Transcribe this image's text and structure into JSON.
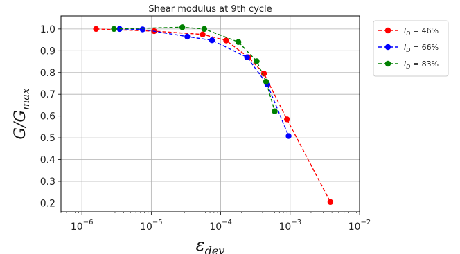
{
  "chart_data": {
    "type": "line",
    "title": "Shear modulus at 9th cycle",
    "xlabel": "ε_dev",
    "ylabel": "G/G_max",
    "xscale": "log",
    "xlim": [
      5e-07,
      0.01
    ],
    "ylim": [
      0.16,
      1.06
    ],
    "xtick_labels": [
      {
        "value": 1e-06,
        "base": "10",
        "exp": "−6"
      },
      {
        "value": 1e-05,
        "base": "10",
        "exp": "−5"
      },
      {
        "value": 0.0001,
        "base": "10",
        "exp": "−4"
      },
      {
        "value": 0.001,
        "base": "10",
        "exp": "−3"
      },
      {
        "value": 0.01,
        "base": "10",
        "exp": "−2"
      }
    ],
    "ytick_labels": [
      "0.2",
      "0.3",
      "0.4",
      "0.5",
      "0.6",
      "0.7",
      "0.8",
      "0.9",
      "1.0"
    ],
    "ytick_values": [
      0.2,
      0.3,
      0.4,
      0.5,
      0.6,
      0.7,
      0.8,
      0.9,
      1.0
    ],
    "grid": true,
    "legend_position": "outside-right",
    "series": [
      {
        "name": "I_D = 46%",
        "legend_main": "I",
        "legend_sub": "D",
        "legend_rest": " = 46%",
        "color": "#ff0000",
        "x": [
          1.6e-06,
          1.1e-05,
          5.5e-05,
          0.00012,
          0.00025,
          0.00042,
          0.0009,
          0.0038
        ],
        "y": [
          1.0,
          0.99,
          0.975,
          0.947,
          0.87,
          0.795,
          0.585,
          0.205
        ]
      },
      {
        "name": "I_D = 66%",
        "legend_main": "I",
        "legend_sub": "D",
        "legend_rest": " = 66%",
        "color": "#0000ff",
        "x": [
          3.5e-06,
          7.5e-06,
          3.3e-05,
          7.5e-05,
          0.00024,
          0.00047,
          0.00095
        ],
        "y": [
          1.0,
          0.998,
          0.965,
          0.948,
          0.87,
          0.745,
          0.508
        ]
      },
      {
        "name": "I_D = 83%",
        "legend_main": "I",
        "legend_sub": "D",
        "legend_rest": " = 83%",
        "color": "#008000",
        "x": [
          2.9e-06,
          2.8e-05,
          5.8e-05,
          0.00018,
          0.00033,
          0.00045,
          0.0006
        ],
        "y": [
          1.0,
          1.008,
          1.0,
          0.94,
          0.852,
          0.758,
          0.622
        ]
      }
    ]
  }
}
